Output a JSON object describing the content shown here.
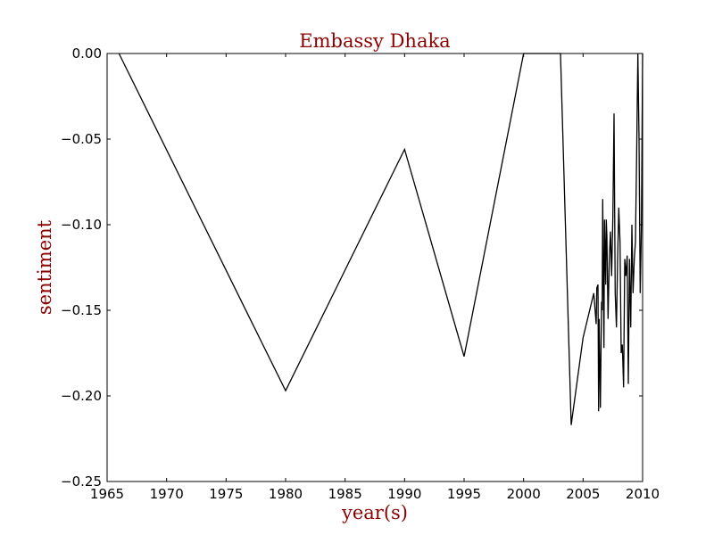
{
  "chart_data": {
    "type": "line",
    "title": "Embassy Dhaka",
    "xlabel": "year(s)",
    "ylabel": "sentiment",
    "xlim": [
      1965,
      2010
    ],
    "ylim": [
      -0.25,
      0.0
    ],
    "x_ticks": [
      1965,
      1970,
      1975,
      1980,
      1985,
      1990,
      1995,
      2000,
      2005,
      2010
    ],
    "x_tick_labels": [
      "1965",
      "1970",
      "1975",
      "1980",
      "1985",
      "1990",
      "1995",
      "2000",
      "2005",
      "2010"
    ],
    "y_ticks": [
      0.0,
      -0.05,
      -0.1,
      -0.15,
      -0.2,
      -0.25
    ],
    "y_tick_labels": [
      "0.00",
      "−0.05",
      "−0.10",
      "−0.15",
      "−0.20",
      "−0.25"
    ],
    "label_color": "#8b0000",
    "line_color": "#000000",
    "series": [
      {
        "name": "sentiment",
        "x": [
          1966.0,
          1980.0,
          1990.0,
          1995.0,
          2000.0,
          2003.1,
          2004.0,
          2005.0,
          2005.9,
          2006.1,
          2006.15,
          2006.25,
          2006.3,
          2006.35,
          2006.45,
          2006.55,
          2006.6,
          2006.65,
          2006.75,
          2006.8,
          2006.9,
          2006.95,
          2007.0,
          2007.1,
          2007.2,
          2007.3,
          2007.4,
          2007.5,
          2007.6,
          2007.7,
          2007.8,
          2007.9,
          2008.0,
          2008.1,
          2008.2,
          2008.3,
          2008.4,
          2008.5,
          2008.6,
          2008.7,
          2008.8,
          2008.9,
          2009.0,
          2009.1,
          2009.2,
          2009.3,
          2009.4,
          2009.5,
          2009.6,
          2009.7,
          2009.8,
          2009.9,
          2010.0
        ],
        "y": [
          0.0,
          -0.197,
          -0.056,
          -0.177,
          0.0,
          0.0,
          -0.217,
          -0.166,
          -0.14,
          -0.158,
          -0.137,
          -0.135,
          -0.209,
          -0.155,
          -0.207,
          -0.145,
          -0.15,
          -0.085,
          -0.172,
          -0.097,
          -0.135,
          -0.097,
          -0.107,
          -0.155,
          -0.12,
          -0.104,
          -0.13,
          -0.095,
          -0.035,
          -0.14,
          -0.16,
          -0.12,
          -0.09,
          -0.11,
          -0.175,
          -0.17,
          -0.195,
          -0.12,
          -0.13,
          -0.118,
          -0.193,
          -0.12,
          -0.16,
          -0.1,
          -0.14,
          -0.12,
          -0.11,
          -0.06,
          0.0,
          -0.05,
          -0.14,
          -0.1,
          0.0
        ]
      }
    ]
  }
}
